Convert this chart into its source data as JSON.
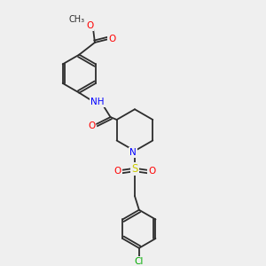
{
  "bg_color": "#efefef",
  "bond_color": "#2d2d2d",
  "atom_colors": {
    "O": "#ff0000",
    "N": "#0000ff",
    "S": "#cccc00",
    "Cl": "#00aa00",
    "C": "#2d2d2d"
  },
  "font_size": 7.5,
  "bond_width": 1.3
}
